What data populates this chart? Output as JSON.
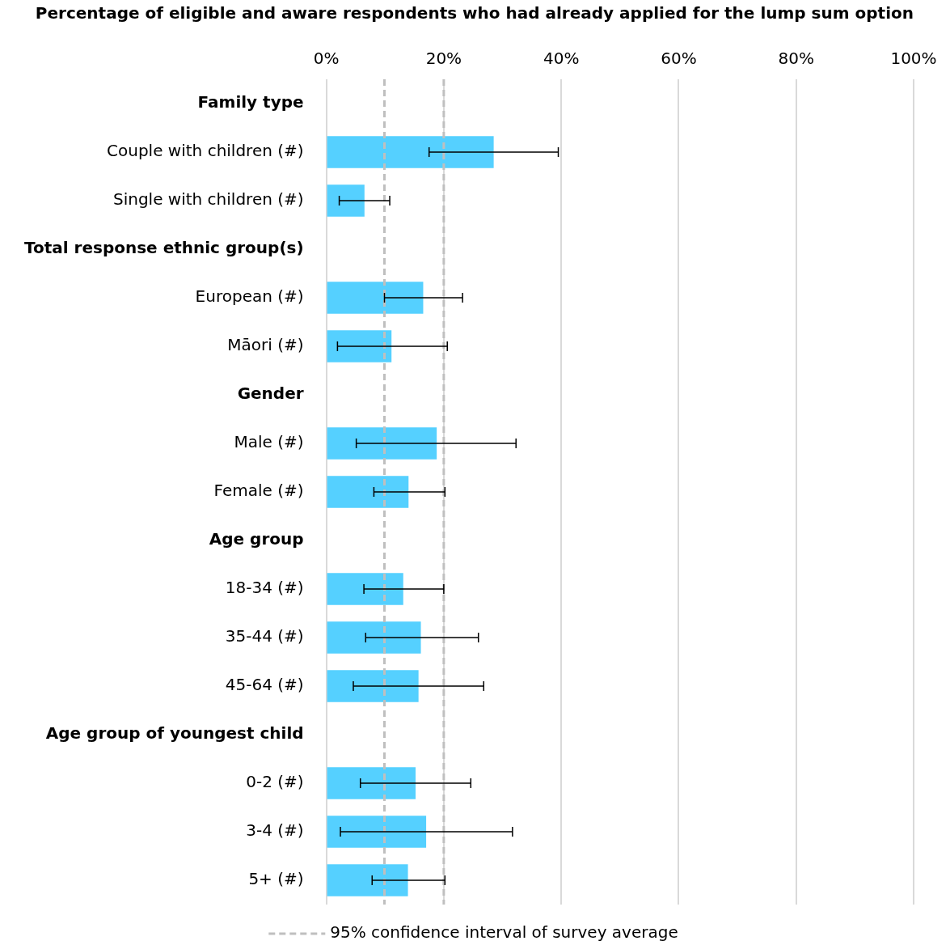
{
  "chart_data": {
    "type": "bar",
    "orientation": "horizontal",
    "title": "Percentage of eligible and aware respondents who had already applied for the lump sum option",
    "categories": [
      "Family type",
      "Couple with children (#)",
      "Single with children (#)",
      "Total response ethnic group(s)",
      "European (#)",
      "Māori (#)",
      "Gender",
      "Male (#)",
      "Female (#)",
      "Age group",
      "18-34 (#)",
      "35-44 (#)",
      "45-64 (#)",
      "Age group of youngest child",
      "0-2 (#)",
      "3-4 (#)",
      "5+ (#)"
    ],
    "values": [
      null,
      28.5,
      6.5,
      null,
      16.5,
      11.1,
      null,
      18.8,
      14.0,
      null,
      13.1,
      16.1,
      15.7,
      null,
      15.2,
      17.0,
      13.9
    ],
    "errors": [
      null,
      [
        17.5,
        39.5
      ],
      [
        2.2,
        10.8
      ],
      null,
      [
        9.9,
        23.2
      ],
      [
        1.9,
        20.6
      ],
      null,
      [
        5.1,
        32.3
      ],
      [
        8.1,
        20.2
      ],
      null,
      [
        6.4,
        20.0
      ],
      [
        6.7,
        25.9
      ],
      [
        4.6,
        26.8
      ],
      null,
      [
        5.8,
        24.6
      ],
      [
        2.4,
        31.7
      ],
      [
        7.8,
        20.2
      ]
    ],
    "color": "#55d0ff",
    "xlim": [
      0,
      100
    ],
    "xticks": [
      {
        "value": 0,
        "label": "0%"
      },
      {
        "value": 20,
        "label": "20%"
      },
      {
        "value": 40,
        "label": "40%"
      },
      {
        "value": 60,
        "label": "60%"
      },
      {
        "value": 80,
        "label": "80%"
      },
      {
        "value": 100,
        "label": "100%"
      }
    ],
    "grid": "x",
    "ref_lines": [
      {
        "axis": "x",
        "value": 9.9,
        "label": "95% confidence interval of survey average",
        "color": "#bfbfbf",
        "line_style": "dashed"
      },
      {
        "axis": "x",
        "value": 20.0,
        "label": null,
        "color": "#bfbfbf",
        "line_style": "dashed"
      }
    ],
    "legend": "bottom"
  }
}
